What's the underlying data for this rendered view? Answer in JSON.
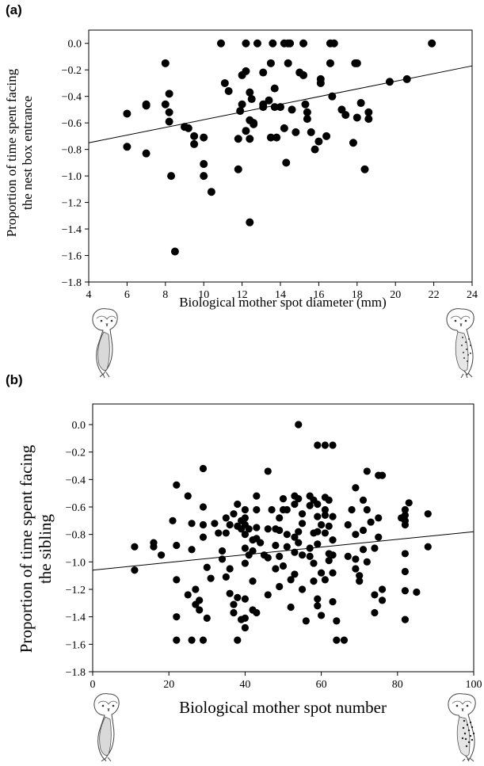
{
  "chart_data": [
    {
      "type": "scatter",
      "panel_label": "(a)",
      "title": "",
      "xlabel": "Biological mother spot diameter (mm)",
      "ylabel": [
        "Proportion of time spent facing",
        "the nest box entrance"
      ],
      "xlim": [
        4,
        24
      ],
      "ylim": [
        -1.8,
        0.1
      ],
      "xticks": [
        "4",
        "6",
        "8",
        "10",
        "12",
        "14",
        "16",
        "18",
        "20",
        "22",
        "24"
      ],
      "yticks": [
        "0.0",
        "-0.2",
        "-0.4",
        "-0.6",
        "-0.8",
        "-1.0",
        "-1.2",
        "-1.4",
        "-1.6",
        "-1.8"
      ],
      "grid": false,
      "legend": "none",
      "trendline": {
        "x": [
          4,
          24
        ],
        "y": [
          -0.75,
          -0.17
        ]
      },
      "points": [
        [
          6.0,
          -0.53
        ],
        [
          6.0,
          -0.78
        ],
        [
          7.0,
          -0.46
        ],
        [
          7.0,
          -0.47
        ],
        [
          7.0,
          -0.83
        ],
        [
          8.0,
          -0.15
        ],
        [
          8.0,
          -0.46
        ],
        [
          8.2,
          -0.38
        ],
        [
          8.2,
          -0.52
        ],
        [
          8.2,
          -0.59
        ],
        [
          8.3,
          -1.0
        ],
        [
          8.5,
          -1.57
        ],
        [
          9.0,
          -0.63
        ],
        [
          9.2,
          -0.64
        ],
        [
          9.5,
          -0.7
        ],
        [
          9.5,
          -0.76
        ],
        [
          10.0,
          -0.71
        ],
        [
          10.0,
          -0.91
        ],
        [
          10.0,
          -1.0
        ],
        [
          10.4,
          -1.12
        ],
        [
          10.9,
          0.0
        ],
        [
          11.1,
          -0.3
        ],
        [
          11.3,
          -0.36
        ],
        [
          11.8,
          -0.72
        ],
        [
          11.8,
          -0.95
        ],
        [
          11.9,
          -0.51
        ],
        [
          12.0,
          -0.24
        ],
        [
          12.0,
          -0.46
        ],
        [
          12.2,
          0.0
        ],
        [
          12.2,
          -0.21
        ],
        [
          12.2,
          -0.66
        ],
        [
          12.4,
          -0.58
        ],
        [
          12.4,
          -0.72
        ],
        [
          12.4,
          -0.37
        ],
        [
          12.4,
          -1.35
        ],
        [
          12.5,
          -0.42
        ],
        [
          12.6,
          -0.61
        ],
        [
          12.6,
          -0.6
        ],
        [
          12.8,
          0.0
        ],
        [
          13.1,
          -0.46
        ],
        [
          13.1,
          -0.22
        ],
        [
          13.1,
          -0.48
        ],
        [
          13.4,
          -0.43
        ],
        [
          13.5,
          -0.71
        ],
        [
          13.5,
          -0.15
        ],
        [
          13.6,
          0.0
        ],
        [
          13.7,
          -0.34
        ],
        [
          13.7,
          -0.48
        ],
        [
          13.8,
          -0.71
        ],
        [
          14.0,
          -0.48
        ],
        [
          14.2,
          0.0
        ],
        [
          14.2,
          -0.64
        ],
        [
          14.3,
          -0.9
        ],
        [
          14.4,
          -0.15
        ],
        [
          14.4,
          0.0
        ],
        [
          14.5,
          0.0
        ],
        [
          14.6,
          -0.5
        ],
        [
          14.8,
          -0.67
        ],
        [
          15.0,
          -0.22
        ],
        [
          15.2,
          -0.24
        ],
        [
          15.3,
          -0.46
        ],
        [
          15.4,
          -0.52
        ],
        [
          15.4,
          -0.57
        ],
        [
          15.2,
          0.0
        ],
        [
          15.6,
          -0.67
        ],
        [
          15.8,
          -0.8
        ],
        [
          16.0,
          -0.74
        ],
        [
          16.1,
          -0.27
        ],
        [
          16.1,
          -0.3
        ],
        [
          16.4,
          -0.7
        ],
        [
          16.6,
          -0.15
        ],
        [
          16.6,
          0.0
        ],
        [
          16.7,
          -0.4
        ],
        [
          16.8,
          0.0
        ],
        [
          17.2,
          -0.5
        ],
        [
          17.4,
          -0.54
        ],
        [
          17.8,
          -0.75
        ],
        [
          17.9,
          -0.15
        ],
        [
          18.0,
          -0.15
        ],
        [
          18.0,
          -0.56
        ],
        [
          18.2,
          -0.45
        ],
        [
          18.4,
          -0.95
        ],
        [
          18.6,
          -0.52
        ],
        [
          18.6,
          -0.57
        ],
        [
          19.7,
          -0.29
        ],
        [
          20.6,
          -0.27
        ],
        [
          21.9,
          0.0
        ]
      ]
    },
    {
      "type": "scatter",
      "panel_label": "(b)",
      "title": "",
      "xlabel": "Biological mother spot number",
      "ylabel": [
        "Proportion of time spent facing",
        "the sibling"
      ],
      "xlim": [
        0,
        100
      ],
      "ylim": [
        -1.8,
        0.15
      ],
      "xticks": [
        "0",
        "20",
        "40",
        "60",
        "80",
        "100"
      ],
      "yticks": [
        "0.0",
        "-0.2",
        "-0.4",
        "-0.6",
        "-0.8",
        "-1.0",
        "-1.2",
        "-1.4",
        "-1.6",
        "-1.8"
      ],
      "grid": false,
      "legend": "none",
      "trendline": {
        "x": [
          0,
          100
        ],
        "y": [
          -1.06,
          -0.78
        ]
      },
      "points": [
        [
          11,
          -0.89
        ],
        [
          11,
          -1.06
        ],
        [
          16,
          -0.86
        ],
        [
          16,
          -0.89
        ],
        [
          18,
          -0.95
        ],
        [
          21,
          -0.7
        ],
        [
          22,
          -0.44
        ],
        [
          22,
          -0.88
        ],
        [
          22,
          -1.13
        ],
        [
          22,
          -1.4
        ],
        [
          22,
          -1.57
        ],
        [
          25,
          -0.52
        ],
        [
          25,
          -1.24
        ],
        [
          26,
          -0.72
        ],
        [
          26,
          -0.91
        ],
        [
          26,
          -1.57
        ],
        [
          27,
          -1.2
        ],
        [
          27,
          -1.31
        ],
        [
          28,
          -1.28
        ],
        [
          28,
          -1.35
        ],
        [
          29,
          -0.32
        ],
        [
          29,
          -0.6
        ],
        [
          29,
          -0.73
        ],
        [
          29,
          -0.82
        ],
        [
          29,
          -1.57
        ],
        [
          30,
          -1.04
        ],
        [
          30,
          -1.41
        ],
        [
          31,
          -1.12
        ],
        [
          32,
          -0.72
        ],
        [
          33,
          -0.79
        ],
        [
          34,
          -0.92
        ],
        [
          34,
          -0.98
        ],
        [
          35,
          -0.68
        ],
        [
          35,
          -0.79
        ],
        [
          35,
          -1.11
        ],
        [
          36,
          -0.73
        ],
        [
          36,
          -1.05
        ],
        [
          36,
          -1.23
        ],
        [
          37,
          -0.65
        ],
        [
          37,
          -1.31
        ],
        [
          37,
          -1.37
        ],
        [
          38,
          -0.58
        ],
        [
          38,
          -0.74
        ],
        [
          38,
          -1.57
        ],
        [
          38,
          -1.26
        ],
        [
          39,
          -0.7
        ],
        [
          39,
          -0.76
        ],
        [
          39,
          -1.42
        ],
        [
          40,
          -1.48
        ],
        [
          40,
          -0.62
        ],
        [
          40,
          -0.68
        ],
        [
          40,
          -0.73
        ],
        [
          40,
          -0.8
        ],
        [
          40,
          -0.9
        ],
        [
          40,
          -1.01
        ],
        [
          40,
          -1.27
        ],
        [
          40,
          -1.41
        ],
        [
          41,
          -0.76
        ],
        [
          41,
          -0.95
        ],
        [
          42,
          -0.84
        ],
        [
          42,
          -0.92
        ],
        [
          42,
          -1.14
        ],
        [
          42,
          -1.35
        ],
        [
          43,
          -0.52
        ],
        [
          43,
          -0.62
        ],
        [
          43,
          -0.75
        ],
        [
          43,
          -0.83
        ],
        [
          43,
          -1.37
        ],
        [
          44,
          -0.86
        ],
        [
          45,
          -0.95
        ],
        [
          46,
          -0.34
        ],
        [
          46,
          -0.76
        ],
        [
          46,
          -0.97
        ],
        [
          46,
          -1.24
        ],
        [
          47,
          -0.62
        ],
        [
          48,
          -0.76
        ],
        [
          48,
          -0.88
        ],
        [
          48,
          -1.05
        ],
        [
          49,
          -0.68
        ],
        [
          49,
          -0.77
        ],
        [
          49,
          -0.96
        ],
        [
          49,
          -1.18
        ],
        [
          50,
          -0.54
        ],
        [
          50,
          -0.62
        ],
        [
          50,
          -1.03
        ],
        [
          51,
          -0.62
        ],
        [
          51,
          -0.8
        ],
        [
          51,
          -0.89
        ],
        [
          52,
          -1.13
        ],
        [
          52,
          -1.33
        ],
        [
          53,
          -0.52
        ],
        [
          53,
          -0.58
        ],
        [
          53,
          -0.82
        ],
        [
          53,
          -0.93
        ],
        [
          53,
          -1.09
        ],
        [
          54,
          -0.0
        ],
        [
          54,
          -0.78
        ],
        [
          54,
          -0.54
        ],
        [
          54,
          -0.86
        ],
        [
          55,
          -0.65
        ],
        [
          55,
          -0.72
        ],
        [
          55,
          -0.95
        ],
        [
          55,
          -1.2
        ],
        [
          56,
          -1.43
        ],
        [
          57,
          -0.52
        ],
        [
          57,
          -0.59
        ],
        [
          57,
          -0.9
        ],
        [
          57,
          -0.96
        ],
        [
          58,
          -0.55
        ],
        [
          58,
          -0.79
        ],
        [
          58,
          -1.01
        ],
        [
          58,
          -1.14
        ],
        [
          59,
          -0.15
        ],
        [
          59,
          -0.58
        ],
        [
          59,
          -0.67
        ],
        [
          59,
          -0.78
        ],
        [
          59,
          -0.87
        ],
        [
          59,
          -1.27
        ],
        [
          59,
          -1.32
        ],
        [
          60,
          -0.73
        ],
        [
          60,
          -1.08
        ],
        [
          60,
          -1.39
        ],
        [
          61,
          -0.15
        ],
        [
          61,
          -0.53
        ],
        [
          61,
          -0.62
        ],
        [
          61,
          -0.66
        ],
        [
          61,
          -0.79
        ],
        [
          61,
          -1.13
        ],
        [
          62,
          -0.55
        ],
        [
          62,
          -0.74
        ],
        [
          62,
          -0.94
        ],
        [
          62,
          -0.99
        ],
        [
          63,
          -0.15
        ],
        [
          63,
          -0.67
        ],
        [
          63,
          -0.84
        ],
        [
          63,
          -0.95
        ],
        [
          63,
          -1.08
        ],
        [
          63,
          -1.29
        ],
        [
          64,
          -1.43
        ],
        [
          64,
          -1.57
        ],
        [
          66,
          -1.57
        ],
        [
          67,
          -0.73
        ],
        [
          67,
          -0.96
        ],
        [
          68,
          -0.62
        ],
        [
          69,
          -0.46
        ],
        [
          69,
          -0.8
        ],
        [
          69,
          -0.98
        ],
        [
          69,
          -1.05
        ],
        [
          70,
          -1.14
        ],
        [
          70,
          -1.1
        ],
        [
          71,
          -0.55
        ],
        [
          71,
          -0.77
        ],
        [
          71,
          -0.91
        ],
        [
          72,
          -0.34
        ],
        [
          72,
          -0.62
        ],
        [
          72,
          -1.0
        ],
        [
          73,
          -0.71
        ],
        [
          74,
          -0.9
        ],
        [
          74,
          -1.24
        ],
        [
          74,
          -1.37
        ],
        [
          75,
          -0.37
        ],
        [
          75,
          -0.68
        ],
        [
          75,
          -0.82
        ],
        [
          76,
          -0.37
        ],
        [
          76,
          -1.2
        ],
        [
          76,
          -1.28
        ],
        [
          81,
          -0.68
        ],
        [
          82,
          -0.62
        ],
        [
          82,
          -0.66
        ],
        [
          82,
          -0.7
        ],
        [
          82,
          -0.73
        ],
        [
          82,
          -0.94
        ],
        [
          82,
          -1.07
        ],
        [
          82,
          -1.21
        ],
        [
          82,
          -1.42
        ],
        [
          83,
          -0.57
        ],
        [
          85,
          -1.22
        ],
        [
          88,
          -0.65
        ],
        [
          88,
          -0.89
        ]
      ]
    }
  ]
}
